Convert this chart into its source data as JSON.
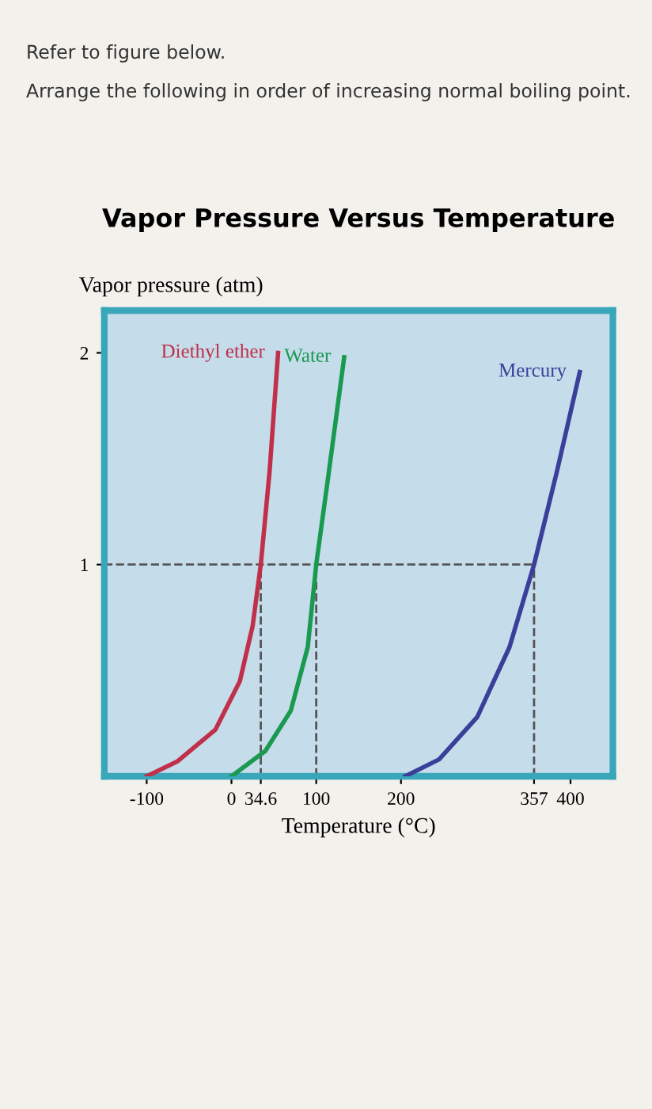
{
  "chart_data": {
    "type": "line",
    "title": "Vapor Pressure Versus Temperature",
    "xlabel": "Temperature (°C)",
    "ylabel": "Vapor pressure (atm)",
    "annotations": [
      "Refer to figure below.",
      "Arrange the following in order of increasing normal boiling point."
    ],
    "series": [
      {
        "name": "Diethyl ether",
        "color": "#c0304a",
        "x": [
          -100,
          -64,
          -19,
          10,
          25,
          34.6,
          45,
          55
        ],
        "values": [
          0,
          0.07,
          0.22,
          0.45,
          0.71,
          1.0,
          1.44,
          2.0
        ]
      },
      {
        "name": "Water",
        "color": "#1a9a50",
        "x": [
          0,
          40,
          70,
          90,
          100,
          115,
          133
        ],
        "values": [
          0,
          0.12,
          0.31,
          0.61,
          1.0,
          1.44,
          1.98
        ]
      },
      {
        "name": "Mercury",
        "color": "#3a3f9a",
        "x": [
          205,
          245,
          290,
          328,
          357,
          384,
          411
        ],
        "values": [
          0,
          0.08,
          0.28,
          0.61,
          1.0,
          1.44,
          1.91
        ]
      }
    ],
    "xlim": [
      -150,
      450
    ],
    "ylim": [
      0,
      2.2
    ],
    "xticks": [
      -100,
      0,
      34.6,
      100,
      200,
      357,
      400
    ],
    "yticks": [
      1,
      2
    ],
    "ref_lines": [
      {
        "axis": "y",
        "value": 1,
        "line_style": "dashed",
        "color": "#555555"
      },
      {
        "axis": "x",
        "value": 34.6,
        "line_style": "dashed",
        "color": "#555555"
      },
      {
        "axis": "x",
        "value": 100,
        "line_style": "dashed",
        "color": "#555555"
      },
      {
        "axis": "x",
        "value": 357,
        "line_style": "dashed",
        "color": "#555555"
      }
    ],
    "grid": false,
    "legend": false,
    "marker": "none",
    "line_style": "solid"
  }
}
